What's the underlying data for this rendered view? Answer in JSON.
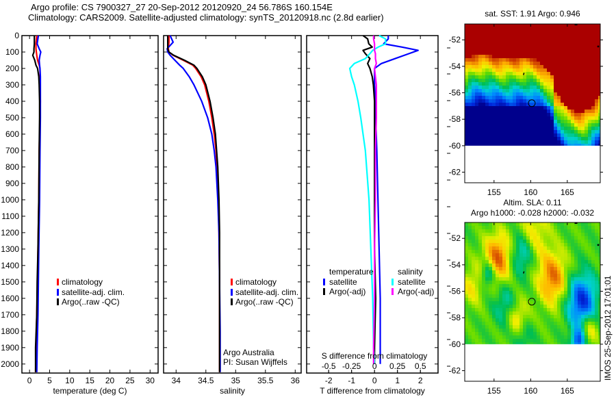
{
  "header": {
    "line1": "Argo profile: CS 7900327_27 20-Sep-2012 20120920_24 56.786S 160.154E",
    "line2": "Climatology: CARS2009. Satellite-adjusted climatology: synTS_20120918.nc (2.8d earlier)"
  },
  "colors": {
    "climatology": "#ff0000",
    "satellite_adj": "#0000ff",
    "argo": "#000000",
    "sal_satellite": "#00ffff",
    "sal_argo": "#ff00ff"
  },
  "chart_data": [
    {
      "type": "line",
      "id": "temperature",
      "xlabel": "temperature (deg C)",
      "ylabel": "",
      "xlim": [
        -1.9,
        32
      ],
      "ylim": [
        2055,
        0
      ],
      "xticks": [
        0,
        5,
        10,
        15,
        20,
        25,
        30
      ],
      "yticks": [
        0,
        100,
        200,
        300,
        400,
        500,
        600,
        700,
        800,
        900,
        1000,
        1100,
        1200,
        1300,
        1400,
        1500,
        1600,
        1700,
        1800,
        1900,
        2000
      ],
      "depth": [
        0,
        50,
        80,
        100,
        120,
        150,
        180,
        200,
        250,
        300,
        400,
        500,
        700,
        1000,
        1300,
        1500,
        1700,
        1900,
        2050
      ],
      "series": [
        {
          "name": "climatology",
          "color_key": "climatology",
          "values": [
            1.8,
            1.6,
            1.6,
            1.7,
            1.8,
            2.0,
            2.4,
            2.6,
            2.6,
            2.6,
            2.7,
            2.6,
            2.4,
            2.3,
            2.1,
            2.0,
            1.8,
            1.6,
            1.5
          ]
        },
        {
          "name": "satellite-adj. clim.",
          "color_key": "satellite_adj",
          "values": [
            2.2,
            1.9,
            2.4,
            2.8,
            2.6,
            2.4,
            2.5,
            2.6,
            2.7,
            2.7,
            2.7,
            2.7,
            2.6,
            2.5,
            2.3,
            2.2,
            2.1,
            1.9,
            1.8
          ]
        },
        {
          "name": "Argo(..raw -QC)",
          "color_key": "argo",
          "values": [
            1.2,
            1.2,
            1.1,
            1.1,
            0.8,
            1.3,
            1.6,
            2.0,
            2.3,
            2.4,
            2.5,
            2.5,
            2.4,
            2.3,
            2.1,
            1.9,
            1.8,
            1.5,
            1.5
          ]
        }
      ],
      "legend": [
        "climatology",
        "satellite-adj. clim.",
        "Argo(..raw -QC)"
      ],
      "legend_position": "center"
    },
    {
      "type": "line",
      "id": "salinity",
      "xlabel": "salinity",
      "xlim": [
        33.79,
        36.1
      ],
      "ylim": [
        2055,
        0
      ],
      "xticks": [
        34,
        34.5,
        35,
        35.5,
        36
      ],
      "depth": [
        0,
        40,
        80,
        100,
        120,
        150,
        180,
        200,
        250,
        300,
        400,
        500,
        600,
        700,
        800,
        1000,
        1200,
        1500,
        1800,
        2050
      ],
      "series": [
        {
          "name": "climatology",
          "color_key": "climatology",
          "values": [
            33.88,
            33.88,
            33.87,
            33.88,
            33.95,
            34.12,
            34.28,
            34.33,
            34.42,
            34.48,
            34.55,
            34.6,
            34.64,
            34.67,
            34.69,
            34.71,
            34.72,
            34.73,
            34.73,
            34.73
          ]
        },
        {
          "name": "satellite-adj. clim.",
          "color_key": "satellite_adj",
          "values": [
            33.9,
            33.95,
            33.85,
            33.86,
            33.9,
            33.98,
            34.06,
            34.12,
            34.22,
            34.3,
            34.43,
            34.53,
            34.6,
            34.64,
            34.67,
            34.7,
            34.72,
            34.73,
            34.74,
            34.74
          ]
        },
        {
          "name": "Argo(..raw -QC)",
          "color_key": "argo",
          "values": [
            33.86,
            33.86,
            33.86,
            33.88,
            33.96,
            34.14,
            34.3,
            34.35,
            34.44,
            34.5,
            34.57,
            34.62,
            34.66,
            34.68,
            34.7,
            34.72,
            34.73,
            34.73,
            34.73,
            34.73
          ]
        }
      ],
      "legend": [
        "climatology",
        "satellite-adj. clim.",
        "Argo(..raw -QC)"
      ],
      "annotation": [
        "Argo Australia",
        "PI: Susan Wijffels"
      ]
    },
    {
      "type": "line",
      "id": "differences",
      "xlabel": "T difference from climatology",
      "top_axis_label": "S difference from climatology",
      "xlim": [
        -2.96,
        2.77
      ],
      "ylim": [
        2055,
        0
      ],
      "xticks": [
        -2,
        -1,
        0,
        1,
        2
      ],
      "s_xticks": [
        -0.5,
        -0.25,
        0,
        0.25,
        0.5
      ],
      "s_scale": 4,
      "depth": [
        0,
        20,
        50,
        70,
        90,
        110,
        140,
        170,
        200,
        250,
        300,
        400,
        500,
        700,
        1000,
        1300,
        1600,
        1900,
        2000
      ],
      "series": [
        {
          "name": "temperature satellite",
          "color_key": "satellite_adj",
          "values": [
            0.6,
            0.6,
            0.4,
            1.2,
            1.9,
            1.5,
            0.9,
            0.3,
            0.0,
            0.0,
            0.0,
            0.05,
            0.05,
            0.1,
            0.15,
            0.2,
            0.25,
            0.25,
            0.25
          ]
        },
        {
          "name": "temperature Argo(-adj)",
          "color_key": "argo",
          "values": [
            -0.5,
            -0.3,
            -0.25,
            -0.1,
            -0.5,
            -0.4,
            -0.2,
            -0.3,
            -0.2,
            -0.1,
            -0.05,
            0.0,
            0.0,
            0.0,
            0.0,
            0.0,
            0.05,
            0.0,
            0.0
          ]
        },
        {
          "name": "salinity satellite",
          "color_key": "sal_satellite",
          "values": [
            0.05,
            0.12,
            0.12,
            0.04,
            -0.02,
            -0.05,
            -0.1,
            -0.22,
            -0.27,
            -0.25,
            -0.22,
            -0.18,
            -0.15,
            -0.1,
            -0.06,
            -0.04,
            -0.02,
            -0.01,
            0.0
          ]
        },
        {
          "name": "salinity Argo(-adj)",
          "color_key": "sal_argo",
          "values": [
            -0.01,
            -0.01,
            0.0,
            0.0,
            0.0,
            0.01,
            0.01,
            0.02,
            0.0,
            0.01,
            0.02,
            0.02,
            0.02,
            0.01,
            0.01,
            0.0,
            0.0,
            -0.01,
            -0.01
          ]
        }
      ],
      "legend_groups": [
        {
          "title": "temperature",
          "items": [
            {
              "label": "satellite",
              "color_key": "satellite_adj"
            },
            {
              "label": "Argo(-adj)",
              "color_key": "argo"
            }
          ]
        },
        {
          "title": "salinity",
          "items": [
            {
              "label": "satellite",
              "color_key": "sal_satellite"
            },
            {
              "label": "Argo(-adj)",
              "color_key": "sal_argo"
            }
          ]
        }
      ]
    },
    {
      "type": "heatmap",
      "id": "sst-map",
      "title": "sat. SST: 1.91  Argo: 0.946",
      "xlim": [
        151,
        169.5
      ],
      "ylim": [
        -62.8,
        -50.8
      ],
      "xticks": [
        155,
        160,
        165
      ],
      "yticks": [
        -52,
        -54,
        -56,
        -58,
        -60,
        -62
      ],
      "data_lat_min": -60,
      "marker": {
        "lon": 160.154,
        "lat": -56.786
      },
      "pattern": "sst"
    },
    {
      "type": "heatmap",
      "id": "sla-map",
      "title": "Altim. SLA: 0.11",
      "subtitle": "Argo h1000: -0.028 h2000: -0.032",
      "xlim": [
        151,
        169.5
      ],
      "ylim": [
        -62.8,
        -50.8
      ],
      "xticks": [
        155,
        160,
        165
      ],
      "yticks": [
        -52,
        -54,
        -56,
        -58,
        -60,
        -62
      ],
      "data_lat_min": -60,
      "marker": {
        "lon": 160.154,
        "lat": -56.786
      },
      "pattern": "sla"
    }
  ],
  "watermark": "IMOS 25-Sep-2012 17:01:01"
}
